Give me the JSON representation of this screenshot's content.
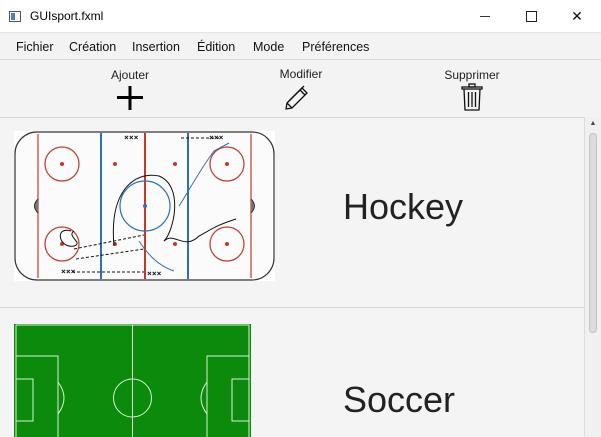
{
  "window": {
    "title": "GUIsport.fxml",
    "minimize_icon": "minimize-icon",
    "maximize_icon": "maximize-icon",
    "close_icon": "close-icon",
    "close_glyph": "✕"
  },
  "menu": {
    "items": [
      "Fichier",
      "Création",
      "Insertion",
      "Édition",
      "Mode",
      "Préférences"
    ]
  },
  "toolbar": {
    "add": {
      "label": "Ajouter",
      "icon": "plus-icon"
    },
    "edit": {
      "label": "Modifier",
      "icon": "pencil-icon"
    },
    "delete": {
      "label": "Supprimer",
      "icon": "trash-icon"
    }
  },
  "sports": [
    {
      "name": "Hockey",
      "thumbnail": "hockey-rink-diagram"
    },
    {
      "name": "Soccer",
      "thumbnail": "soccer-field-diagram"
    }
  ],
  "colors": {
    "rink_red": "#c0392b",
    "rink_blue": "#2e6fb5",
    "field_green": "#0c8a0c"
  }
}
